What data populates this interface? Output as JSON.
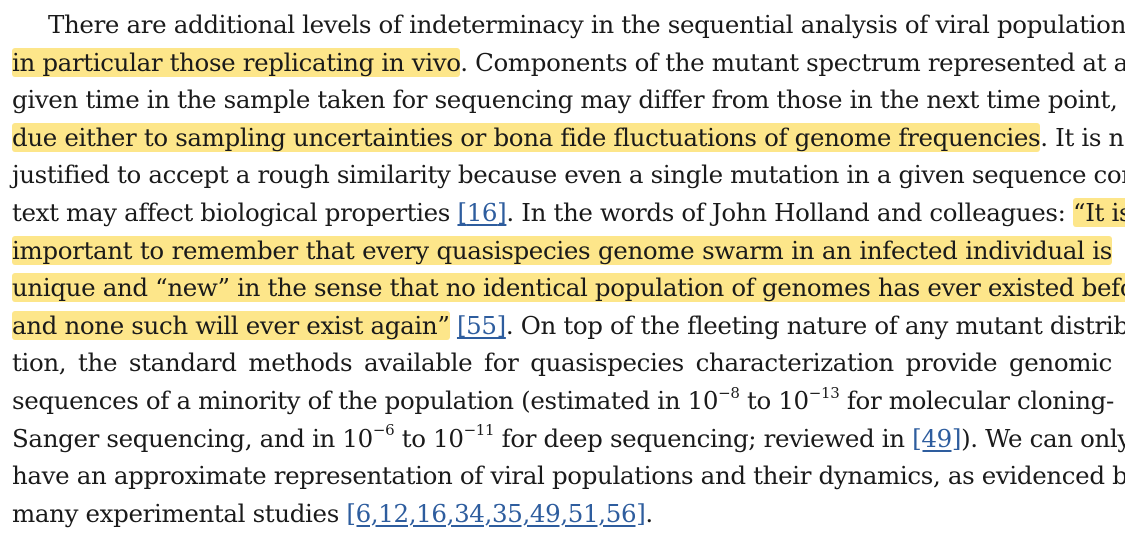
{
  "lines": [
    [
      {
        "t": "There are additional levels of indeterminacy in the sequential analysis of viral populations,"
      }
    ],
    [
      {
        "t": "in particular those replicating in vivo",
        "hl": true
      },
      {
        "t": ". Components of the mutant spectrum represented at a"
      }
    ],
    [
      {
        "t": "given time in the sample taken for sequencing may differ from those in the next time point,"
      }
    ],
    [
      {
        "t": "due either to sampling uncertainties or bona fide fluctuations of genome frequencies",
        "hl": true
      },
      {
        "t": ". It is not"
      }
    ],
    [
      {
        "t": "justified to accept a rough similarity because even a single mutation in a given sequence con-"
      }
    ],
    [
      {
        "t": "text may affect biological properties "
      },
      {
        "t": "[",
        "ref": true
      },
      {
        "t": "16",
        "ref": true
      },
      {
        "t": "]",
        "ref": true
      },
      {
        "t": ". In the words of John Holland and colleagues: "
      },
      {
        "t": "“It is",
        "hl": true
      }
    ],
    [
      {
        "t": "important to remember that every quasispecies genome swarm in an infected individual is",
        "hl": true
      }
    ],
    [
      {
        "t": "unique and “new” in the sense that no identical population of genomes has ever existed before",
        "hl": true
      }
    ],
    [
      {
        "t": "and none such will ever exist again”",
        "hl": true
      },
      {
        "t": " "
      },
      {
        "t": "[55]",
        "ref": true
      },
      {
        "t": ". On top of the fleeting nature of any mutant distribu-"
      }
    ],
    [
      {
        "t": "tion, the standard methods available for quasispecies characterization provide genomic"
      }
    ],
    [
      {
        "t": "sequences of a minority of the population (estimated in 10"
      },
      {
        "t": "−8",
        "sup": true
      },
      {
        "t": " to 10"
      },
      {
        "t": "−13",
        "sup": true
      },
      {
        "t": " for molecular cloning-"
      }
    ],
    [
      {
        "t": "Sanger sequencing, and in 10"
      },
      {
        "t": "−6",
        "sup": true
      },
      {
        "t": " to 10"
      },
      {
        "t": "−11",
        "sup": true
      },
      {
        "t": " for deep sequencing; reviewed in "
      },
      {
        "t": "[49]",
        "ref": true
      },
      {
        "t": "). We can only"
      }
    ],
    [
      {
        "t": "have an approximate representation of viral populations and their dynamics, as evidenced by"
      }
    ],
    [
      {
        "t": "many experimental studies "
      },
      {
        "t": "[6,12,16,34,35,49,51,56]",
        "ref": true
      },
      {
        "t": "."
      }
    ]
  ]
}
